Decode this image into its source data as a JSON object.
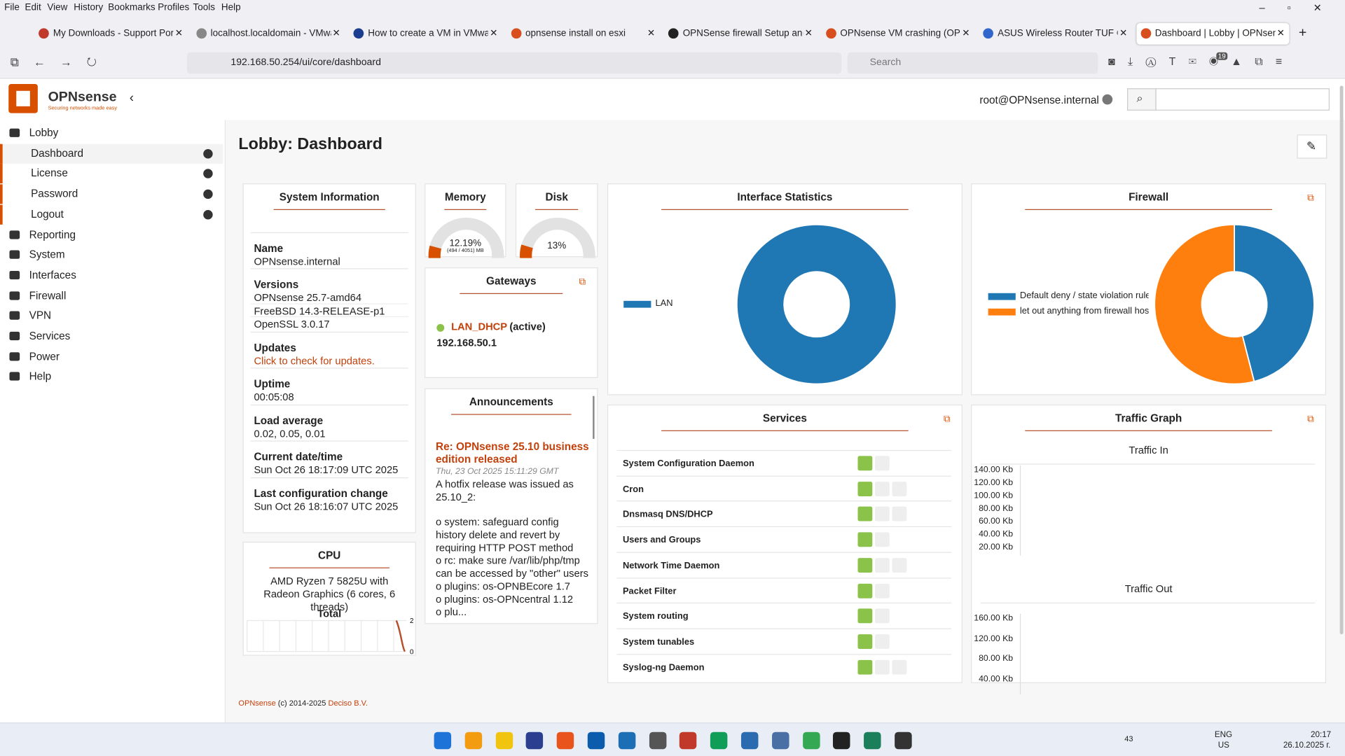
{
  "browser": {
    "menu": [
      "File",
      "Edit",
      "View",
      "History",
      "Bookmarks",
      "Profiles",
      "Tools",
      "Help"
    ],
    "tabs": [
      "My Downloads - Support Portal",
      "localhost.localdomain - VMware",
      "How to create a VM in VMware",
      "opnsense install on esxi",
      "OPNSense firewall Setup and in",
      "OPNsense VM crashing (OPNse",
      "ASUS Wireless Router TUF GAM",
      "Dashboard | Lobby | OPNsense"
    ],
    "url": "192.168.50.254/ui/core/dashboard",
    "search": "Search",
    "badge": "19"
  },
  "header": {
    "logo": "OPNsense",
    "tagline": "Securing networks made easy",
    "user": "root@OPNsense.internal"
  },
  "sidebar": [
    {
      "label": "Lobby",
      "sub": false
    },
    {
      "label": "Dashboard",
      "sub": true
    },
    {
      "label": "License",
      "sub": true
    },
    {
      "label": "Password",
      "sub": true
    },
    {
      "label": "Logout",
      "sub": true
    },
    {
      "label": "Reporting",
      "sub": false
    },
    {
      "label": "System",
      "sub": false
    },
    {
      "label": "Interfaces",
      "sub": false
    },
    {
      "label": "Firewall",
      "sub": false
    },
    {
      "label": "VPN",
      "sub": false
    },
    {
      "label": "Services",
      "sub": false
    },
    {
      "label": "Power",
      "sub": false
    },
    {
      "label": "Help",
      "sub": false
    }
  ],
  "page_title": "Lobby: Dashboard",
  "system_info": {
    "title": "System Information",
    "fields": [
      {
        "label": "Name",
        "lines": [
          "OPNsense.internal"
        ]
      },
      {
        "label": "Versions",
        "lines": [
          "OPNsense 25.7-amd64",
          "FreeBSD 14.3-RELEASE-p1",
          "OpenSSL 3.0.17"
        ]
      },
      {
        "label": "Updates",
        "lines": [
          "Click to check for updates."
        ]
      },
      {
        "label": "Uptime",
        "lines": [
          "00:05:08"
        ]
      },
      {
        "label": "Load average",
        "lines": [
          "0.02, 0.05, 0.01"
        ]
      },
      {
        "label": "Current date/time",
        "lines": [
          "Sun Oct 26 18:17:09 UTC 2025"
        ]
      },
      {
        "label": "Last configuration change",
        "lines": [
          "Sun Oct 26 18:16:07 UTC 2025"
        ]
      }
    ]
  },
  "memory": {
    "title": "Memory",
    "value": 12.19,
    "value_label": "12.19%",
    "detail": "(494 / 4051) MB"
  },
  "disk": {
    "title": "Disk",
    "value": 13,
    "value_label": "13%"
  },
  "gateways": {
    "title": "Gateways",
    "name": "LAN_DHCP",
    "status": "(active)",
    "address": "192.168.50.1"
  },
  "announcements": {
    "title": "Announcements",
    "headline": "Re: OPNsense 25.10 business edition released",
    "date": "Thu, 23 Oct 2025 15:11:29 GMT",
    "paragraphs": [
      "A hotfix release was issued as 25.10_2:",
      "o system: safeguard config history delete and revert by requiring HTTP POST method",
      "o rc: make sure /var/lib/php/tmp can be accessed by \"other\" users",
      "o plugins: os-OPNBEcore 1.7",
      "o plugins: os-OPNcentral 1.12",
      "o plu..."
    ]
  },
  "cpu": {
    "title": "CPU",
    "model": "AMD Ryzen 7 5825U with Radeon Graphics (6 cores, 6 threads)",
    "subtitle": "Total",
    "ylim": [
      0,
      2
    ],
    "yticks": [
      0,
      2
    ]
  },
  "interface_statistics": {
    "type": "pie",
    "title": "Interface Statistics",
    "categories": [
      "LAN"
    ],
    "values": [
      100
    ],
    "colors": [
      "#1f77b4"
    ]
  },
  "firewall": {
    "type": "pie",
    "title": "Firewall",
    "categories": [
      "Default deny / state violation rule",
      "let out anything from firewall host itself"
    ],
    "values": [
      46,
      54
    ],
    "colors": [
      "#1f77b4",
      "#ff7f0e"
    ]
  },
  "services": {
    "title": "Services",
    "items": [
      {
        "name": "System Configuration Daemon",
        "stop": false
      },
      {
        "name": "Cron",
        "stop": true
      },
      {
        "name": "Dnsmasq DNS/DHCP",
        "stop": true
      },
      {
        "name": "Users and Groups",
        "stop": false
      },
      {
        "name": "Network Time Daemon",
        "stop": true
      },
      {
        "name": "Packet Filter",
        "stop": false
      },
      {
        "name": "System routing",
        "stop": false
      },
      {
        "name": "System tunables",
        "stop": false
      },
      {
        "name": "Syslog-ng Daemon",
        "stop": true
      }
    ]
  },
  "traffic": {
    "title": "Traffic Graph",
    "in": {
      "title": "Traffic In",
      "ticks": [
        "140.00 Kb",
        "120.00 Kb",
        "100.00 Kb",
        "80.00 Kb",
        "60.00 Kb",
        "40.00 Kb",
        "20.00 Kb"
      ]
    },
    "out": {
      "title": "Traffic Out",
      "ticks": [
        "160.00 Kb",
        "120.00 Kb",
        "80.00 Kb",
        "40.00 Kb"
      ]
    }
  },
  "footer": {
    "brand": "OPNsense",
    "copy": "(c) 2014-2025",
    "company": "Deciso B.V."
  },
  "taskbar": {
    "count": "43",
    "lang": "ENG",
    "region": "US",
    "time": "20:17",
    "date": "26.10.2025 г."
  }
}
